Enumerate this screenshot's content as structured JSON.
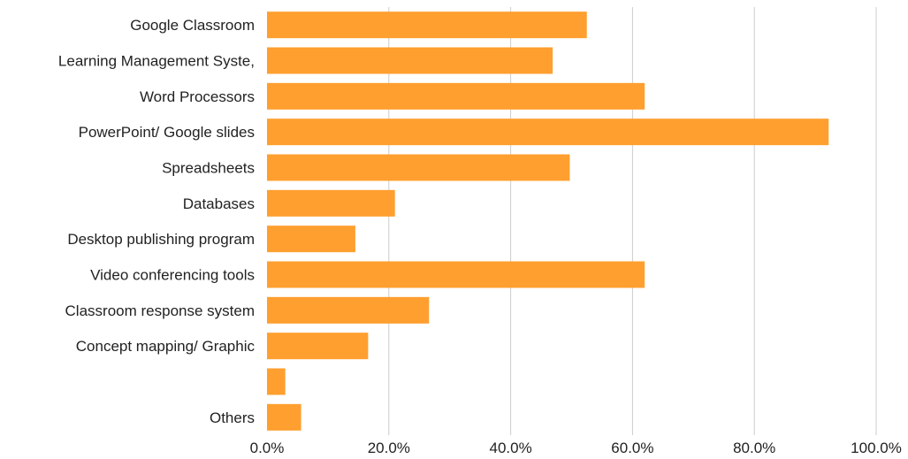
{
  "chart_data": {
    "type": "bar",
    "orientation": "horizontal",
    "categories": [
      "Google Classroom",
      "Learning Management Syste,",
      "Word Processors",
      "PowerPoint/ Google slides",
      "Spreadsheets",
      "Databases",
      "Desktop publishing program",
      "Video conferencing tools",
      "Classroom response system",
      "Concept mapping/ Graphic",
      "",
      "Others"
    ],
    "values": [
      52.5,
      46.9,
      62.0,
      92.2,
      49.7,
      21.0,
      14.5,
      62.0,
      26.6,
      16.6,
      3.0,
      5.6
    ],
    "unit": "%",
    "xlim": [
      0,
      100
    ],
    "xticks": [
      0,
      20,
      40,
      60,
      80,
      100
    ],
    "xtick_labels": [
      "0.0%",
      "20.0%",
      "40.0%",
      "60.0%",
      "80.0%",
      "100.0%"
    ],
    "title": "",
    "xlabel": "",
    "ylabel": "",
    "grid": "vertical",
    "legend": "none",
    "bar_color": "#ff9f2f",
    "grid_color": "#cccccc"
  }
}
